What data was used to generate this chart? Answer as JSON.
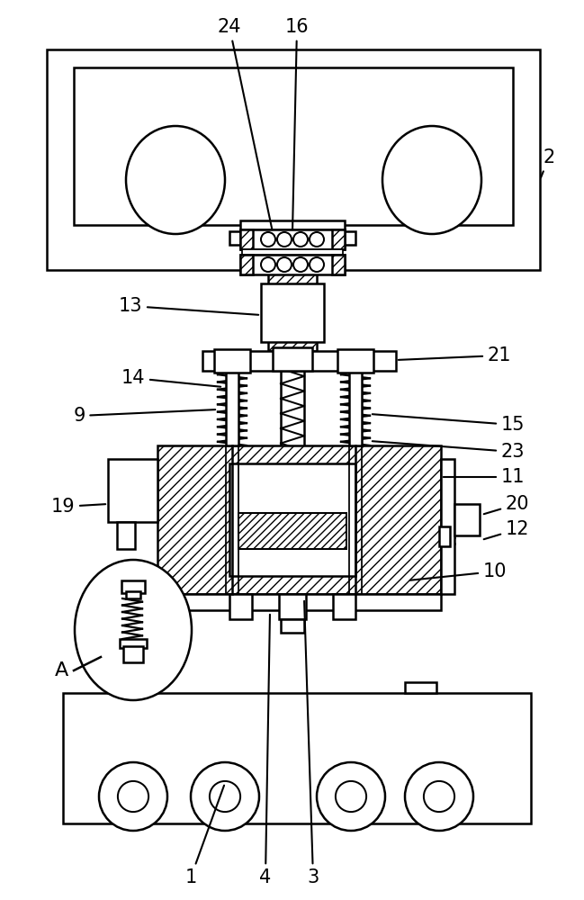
{
  "bg_color": "#ffffff",
  "line_color": "#000000",
  "lw": 1.8,
  "fig_width": 6.49,
  "fig_height": 10.0
}
